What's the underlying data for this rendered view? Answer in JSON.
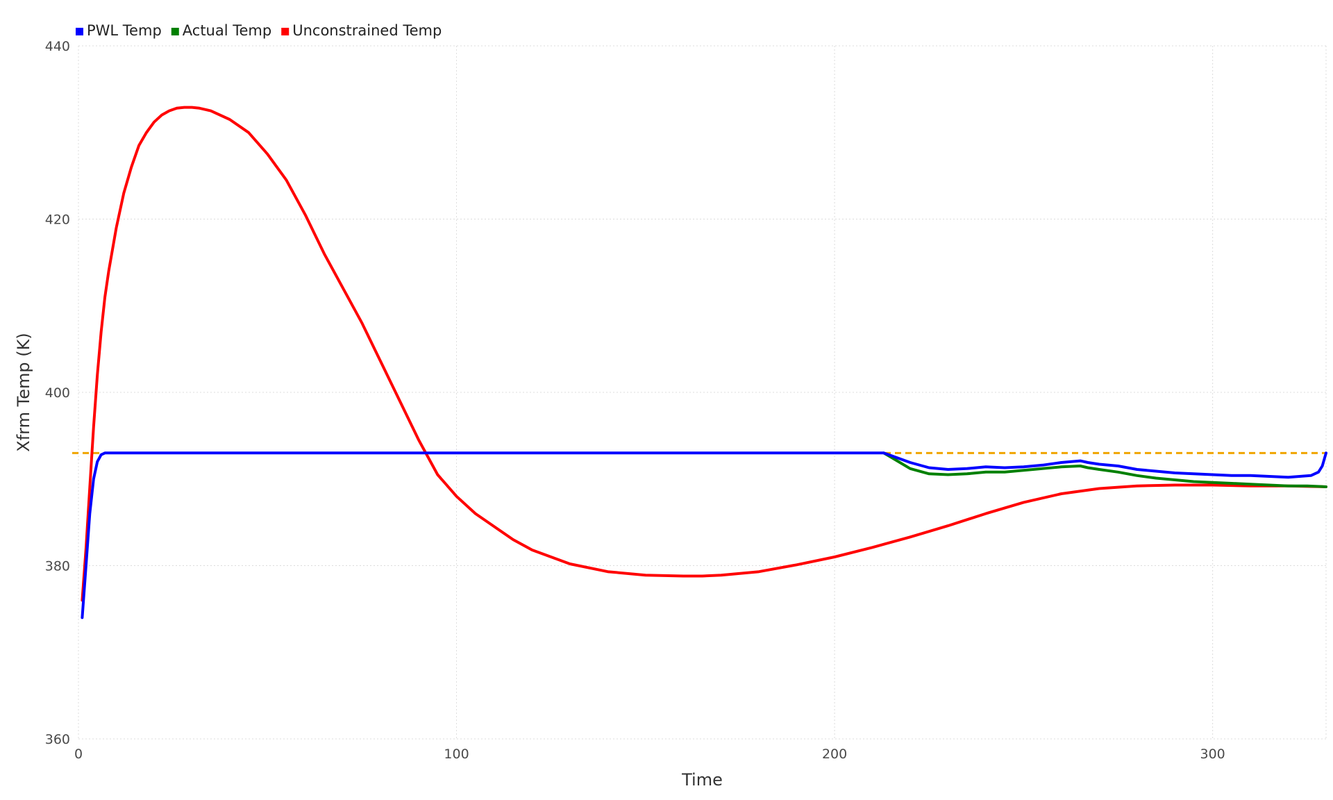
{
  "chart_data": {
    "type": "line",
    "title": "",
    "xlabel": "Time",
    "ylabel": "Xfrm Temp (K)",
    "xlim": [
      0,
      330
    ],
    "ylim": [
      360,
      440
    ],
    "x_ticks": [
      0,
      100,
      200,
      300
    ],
    "y_ticks": [
      360,
      380,
      400,
      420,
      440
    ],
    "grid": true,
    "legend_position": "top-left",
    "limit_line": {
      "y": 393,
      "color": "#f0a500",
      "style": "dashed"
    },
    "series": [
      {
        "name": "PWL Temp",
        "color": "#0000ff",
        "x": [
          1,
          2,
          3,
          4,
          5,
          6,
          7,
          8,
          9,
          10,
          50,
          100,
          150,
          200,
          213,
          215,
          220,
          225,
          230,
          235,
          240,
          245,
          250,
          255,
          260,
          265,
          267,
          270,
          275,
          280,
          285,
          290,
          295,
          300,
          305,
          310,
          315,
          320,
          323,
          326,
          328,
          329,
          330
        ],
        "values": [
          374,
          380,
          386,
          390,
          392,
          392.8,
          393,
          393,
          393,
          393,
          393,
          393,
          393,
          393,
          393,
          392.7,
          391.9,
          391.3,
          391.1,
          391.2,
          391.4,
          391.3,
          391.4,
          391.6,
          391.9,
          392.1,
          391.9,
          391.7,
          391.5,
          391.1,
          390.9,
          390.7,
          390.6,
          390.5,
          390.4,
          390.4,
          390.3,
          390.2,
          390.3,
          390.4,
          390.8,
          391.5,
          393
        ]
      },
      {
        "name": "Actual Temp",
        "color": "#008000",
        "x": [
          213,
          215,
          220,
          225,
          230,
          235,
          240,
          245,
          250,
          255,
          260,
          265,
          267,
          270,
          275,
          280,
          285,
          290,
          295,
          300,
          305,
          310,
          315,
          320,
          325,
          330
        ],
        "values": [
          393,
          392.5,
          391.2,
          390.6,
          390.5,
          390.6,
          390.8,
          390.8,
          391.0,
          391.2,
          391.4,
          391.5,
          391.3,
          391.1,
          390.8,
          390.4,
          390.1,
          389.9,
          389.7,
          389.6,
          389.5,
          389.4,
          389.3,
          389.2,
          389.2,
          389.1
        ]
      },
      {
        "name": "Unconstrained Temp",
        "color": "#ff0000",
        "x": [
          1,
          2,
          3,
          4,
          5,
          6,
          7,
          8,
          10,
          12,
          14,
          16,
          18,
          20,
          22,
          24,
          26,
          28,
          30,
          32,
          35,
          40,
          45,
          50,
          55,
          60,
          65,
          70,
          75,
          80,
          85,
          90,
          95,
          100,
          105,
          110,
          115,
          120,
          130,
          140,
          150,
          160,
          165,
          170,
          180,
          190,
          200,
          210,
          220,
          230,
          240,
          250,
          260,
          270,
          280,
          290,
          300,
          310,
          320,
          330
        ],
        "values": [
          376,
          382,
          389,
          396,
          402,
          407,
          411,
          414,
          419,
          423,
          426,
          428.5,
          430,
          431.2,
          432.0,
          432.5,
          432.8,
          432.9,
          432.9,
          432.8,
          432.5,
          431.5,
          430,
          427.5,
          424.5,
          420.5,
          416,
          412,
          408,
          403.5,
          399,
          394.5,
          390.5,
          388,
          386,
          384.5,
          383,
          381.8,
          380.2,
          379.3,
          378.9,
          378.8,
          378.8,
          378.9,
          379.3,
          380.1,
          381.0,
          382.1,
          383.3,
          384.6,
          386.0,
          387.3,
          388.3,
          388.9,
          389.2,
          389.3,
          389.3,
          389.2,
          389.2,
          389.1
        ]
      }
    ]
  }
}
